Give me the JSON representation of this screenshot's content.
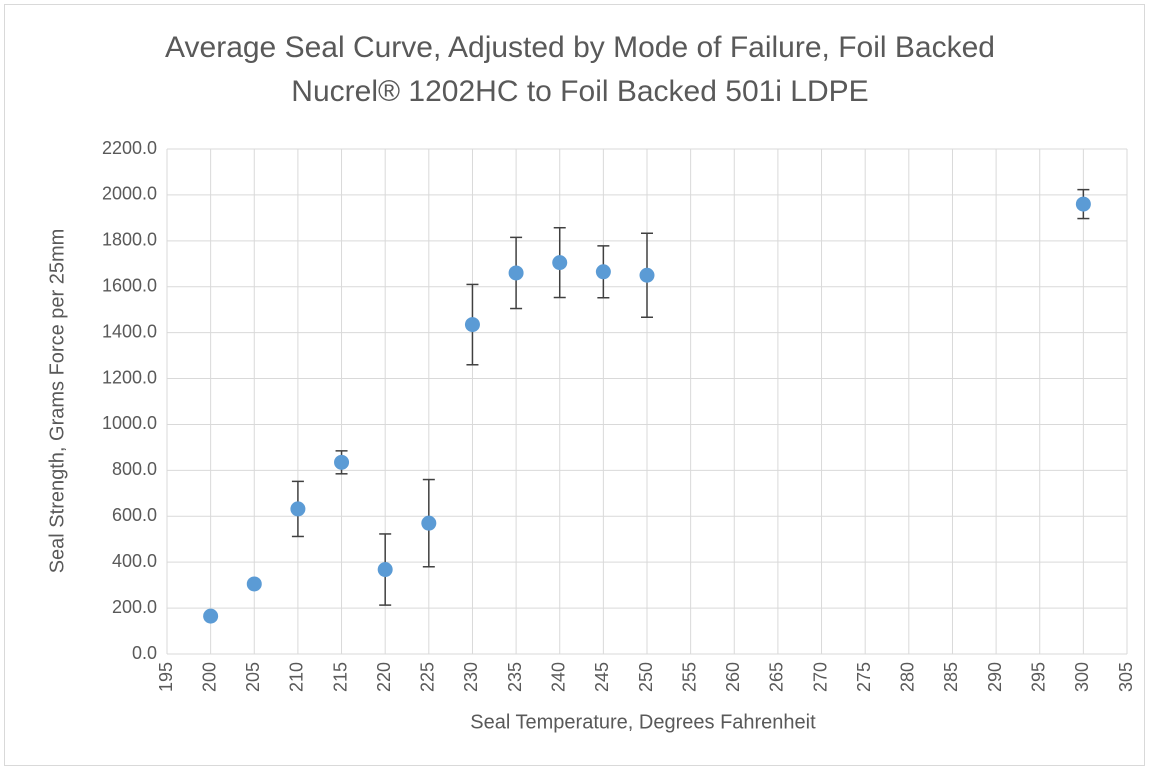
{
  "chart_data": {
    "type": "scatter",
    "title": "Average Seal Curve, Adjusted by Mode of Failure, Foil Backed Nucrel® 1202HC to Foil Backed 501i LDPE",
    "x_label": "Seal Temperature, Degrees Fahrenheit",
    "y_label": "Seal Strength, Grams Force per 25mm",
    "series": [
      {
        "color": "#5b9bd5",
        "x": [
          200,
          205,
          210,
          215,
          220,
          225,
          230,
          235,
          240,
          245,
          250,
          300
        ],
        "values": [
          165,
          305,
          632,
          835,
          368,
          570,
          1435,
          1660,
          1705,
          1665,
          1650,
          1960
        ],
        "errors": [
          10,
          10,
          120,
          50,
          155,
          190,
          175,
          155,
          152,
          113,
          183,
          63
        ]
      }
    ],
    "xlim": [
      195,
      305
    ],
    "xticks": [
      195,
      200,
      205,
      210,
      215,
      220,
      225,
      230,
      235,
      240,
      245,
      250,
      255,
      260,
      265,
      270,
      275,
      280,
      285,
      290,
      295,
      300,
      305
    ],
    "ylim": [
      0,
      2200
    ],
    "yticks": [
      {
        "value": 0,
        "label": "0.0"
      },
      {
        "value": 200,
        "label": "200.0"
      },
      {
        "value": 400,
        "label": "400.0"
      },
      {
        "value": 600,
        "label": "600.0"
      },
      {
        "value": 800,
        "label": "800.0"
      },
      {
        "value": 1000,
        "label": "1000.0"
      },
      {
        "value": 1200,
        "label": "1200.0"
      },
      {
        "value": 1400,
        "label": "1400.0"
      },
      {
        "value": 1600,
        "label": "1600.0"
      },
      {
        "value": 1800,
        "label": "1800.0"
      },
      {
        "value": 2000,
        "label": "2000.0"
      },
      {
        "value": 2200,
        "label": "2200.0"
      }
    ],
    "grid": true
  }
}
